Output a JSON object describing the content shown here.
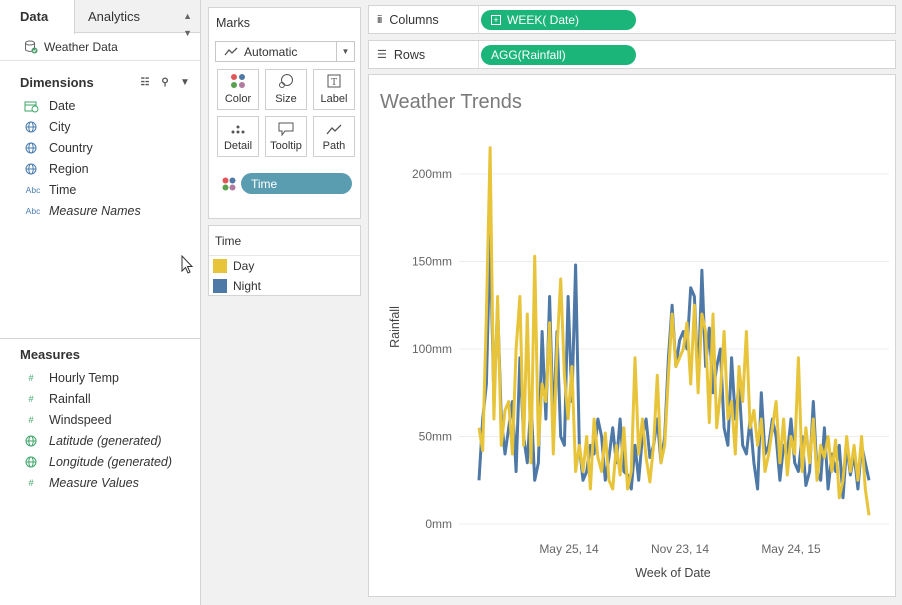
{
  "datapane": {
    "tab_data": "Data",
    "tab_analytics": "Analytics",
    "datasource": "Weather Data",
    "dimensions_title": "Dimensions",
    "dimensions": [
      {
        "label": "Date",
        "icon": "calendar-icon"
      },
      {
        "label": "City",
        "icon": "globe-icon"
      },
      {
        "label": "Country",
        "icon": "globe-icon"
      },
      {
        "label": "Region",
        "icon": "globe-icon"
      },
      {
        "label": "Time",
        "icon": "abc-icon"
      },
      {
        "label": "Measure Names",
        "icon": "abc-icon"
      }
    ],
    "measures_title": "Measures",
    "measures": [
      {
        "label": "Hourly Temp",
        "icon": "hash-icon"
      },
      {
        "label": "Rainfall",
        "icon": "hash-icon"
      },
      {
        "label": "Windspeed",
        "icon": "hash-icon"
      },
      {
        "label": "Latitude (generated)",
        "icon": "globe-icon"
      },
      {
        "label": "Longitude (generated)",
        "icon": "globe-icon"
      },
      {
        "label": "Measure Values",
        "icon": "hash-icon"
      }
    ]
  },
  "marks": {
    "title": "Marks",
    "mark_type": "Automatic",
    "buttons": [
      "Color",
      "Size",
      "Label",
      "Detail",
      "Tooltip",
      "Path"
    ],
    "pill": "Time"
  },
  "legend": {
    "title": "Time",
    "items": [
      {
        "label": "Day",
        "color": "#e8c43a"
      },
      {
        "label": "Night",
        "color": "#4e79a7"
      }
    ]
  },
  "shelves": {
    "columns_label": "Columns",
    "columns_pill": "WEEK( Date)",
    "rows_label": "Rows",
    "rows_pill": "AGG(Rainfall)"
  },
  "view": {
    "title": "Weather Trends"
  },
  "chart_data": {
    "type": "line",
    "xlabel": "Week of Date",
    "ylabel": "Rainfall",
    "x_tick_labels": [
      "May 25, 14",
      "Nov 23, 14",
      "May 24, 15"
    ],
    "y_tick_labels": [
      "0mm",
      "50mm",
      "100mm",
      "150mm",
      "200mm"
    ],
    "ylim": [
      0,
      225
    ],
    "grid": true,
    "series": [
      {
        "name": "Day",
        "color": "#e8c43a",
        "values": [
          55,
          42,
          120,
          215,
          60,
          130,
          45,
          65,
          70,
          40,
          100,
          130,
          45,
          120,
          35,
          153,
          45,
          80,
          70,
          115,
          40,
          100,
          140,
          85,
          60,
          90,
          30,
          45,
          30,
          50,
          20,
          60,
          38,
          30,
          52,
          25,
          20,
          45,
          28,
          55,
          20,
          30,
          95,
          40,
          60,
          38,
          24,
          45,
          85,
          35,
          45,
          85,
          120,
          90,
          95,
          100,
          115,
          80,
          125,
          75,
          120,
          110,
          58,
          120,
          55,
          75,
          110,
          60,
          70,
          40,
          90,
          70,
          110,
          55,
          65,
          45,
          60,
          30,
          40,
          55,
          70,
          35,
          60,
          28,
          50,
          40,
          95,
          30,
          55,
          35,
          60,
          25,
          45,
          38,
          50,
          30,
          48,
          15,
          25,
          50,
          30,
          45,
          25,
          50,
          20,
          5
        ]
      },
      {
        "name": "Night",
        "color": "#4e79a7",
        "values": [
          25,
          60,
          80,
          165,
          70,
          125,
          60,
          40,
          55,
          70,
          30,
          95,
          50,
          35,
          70,
          25,
          35,
          110,
          60,
          130,
          55,
          110,
          50,
          45,
          130,
          70,
          148,
          45,
          25,
          30,
          45,
          40,
          60,
          50,
          25,
          38,
          55,
          35,
          60,
          30,
          28,
          20,
          45,
          25,
          50,
          60,
          38,
          45,
          60,
          35,
          50,
          95,
          125,
          90,
          105,
          110,
          100,
          135,
          130,
          80,
          145,
          90,
          112,
          75,
          90,
          100,
          55,
          45,
          95,
          60,
          80,
          45,
          40,
          60,
          35,
          20,
          75,
          40,
          45,
          60,
          50,
          25,
          45,
          40,
          60,
          35,
          30,
          50,
          22,
          30,
          70,
          30,
          25,
          55,
          20,
          40,
          30,
          45,
          15,
          45,
          28,
          40,
          20,
          45,
          35,
          25
        ]
      }
    ]
  }
}
